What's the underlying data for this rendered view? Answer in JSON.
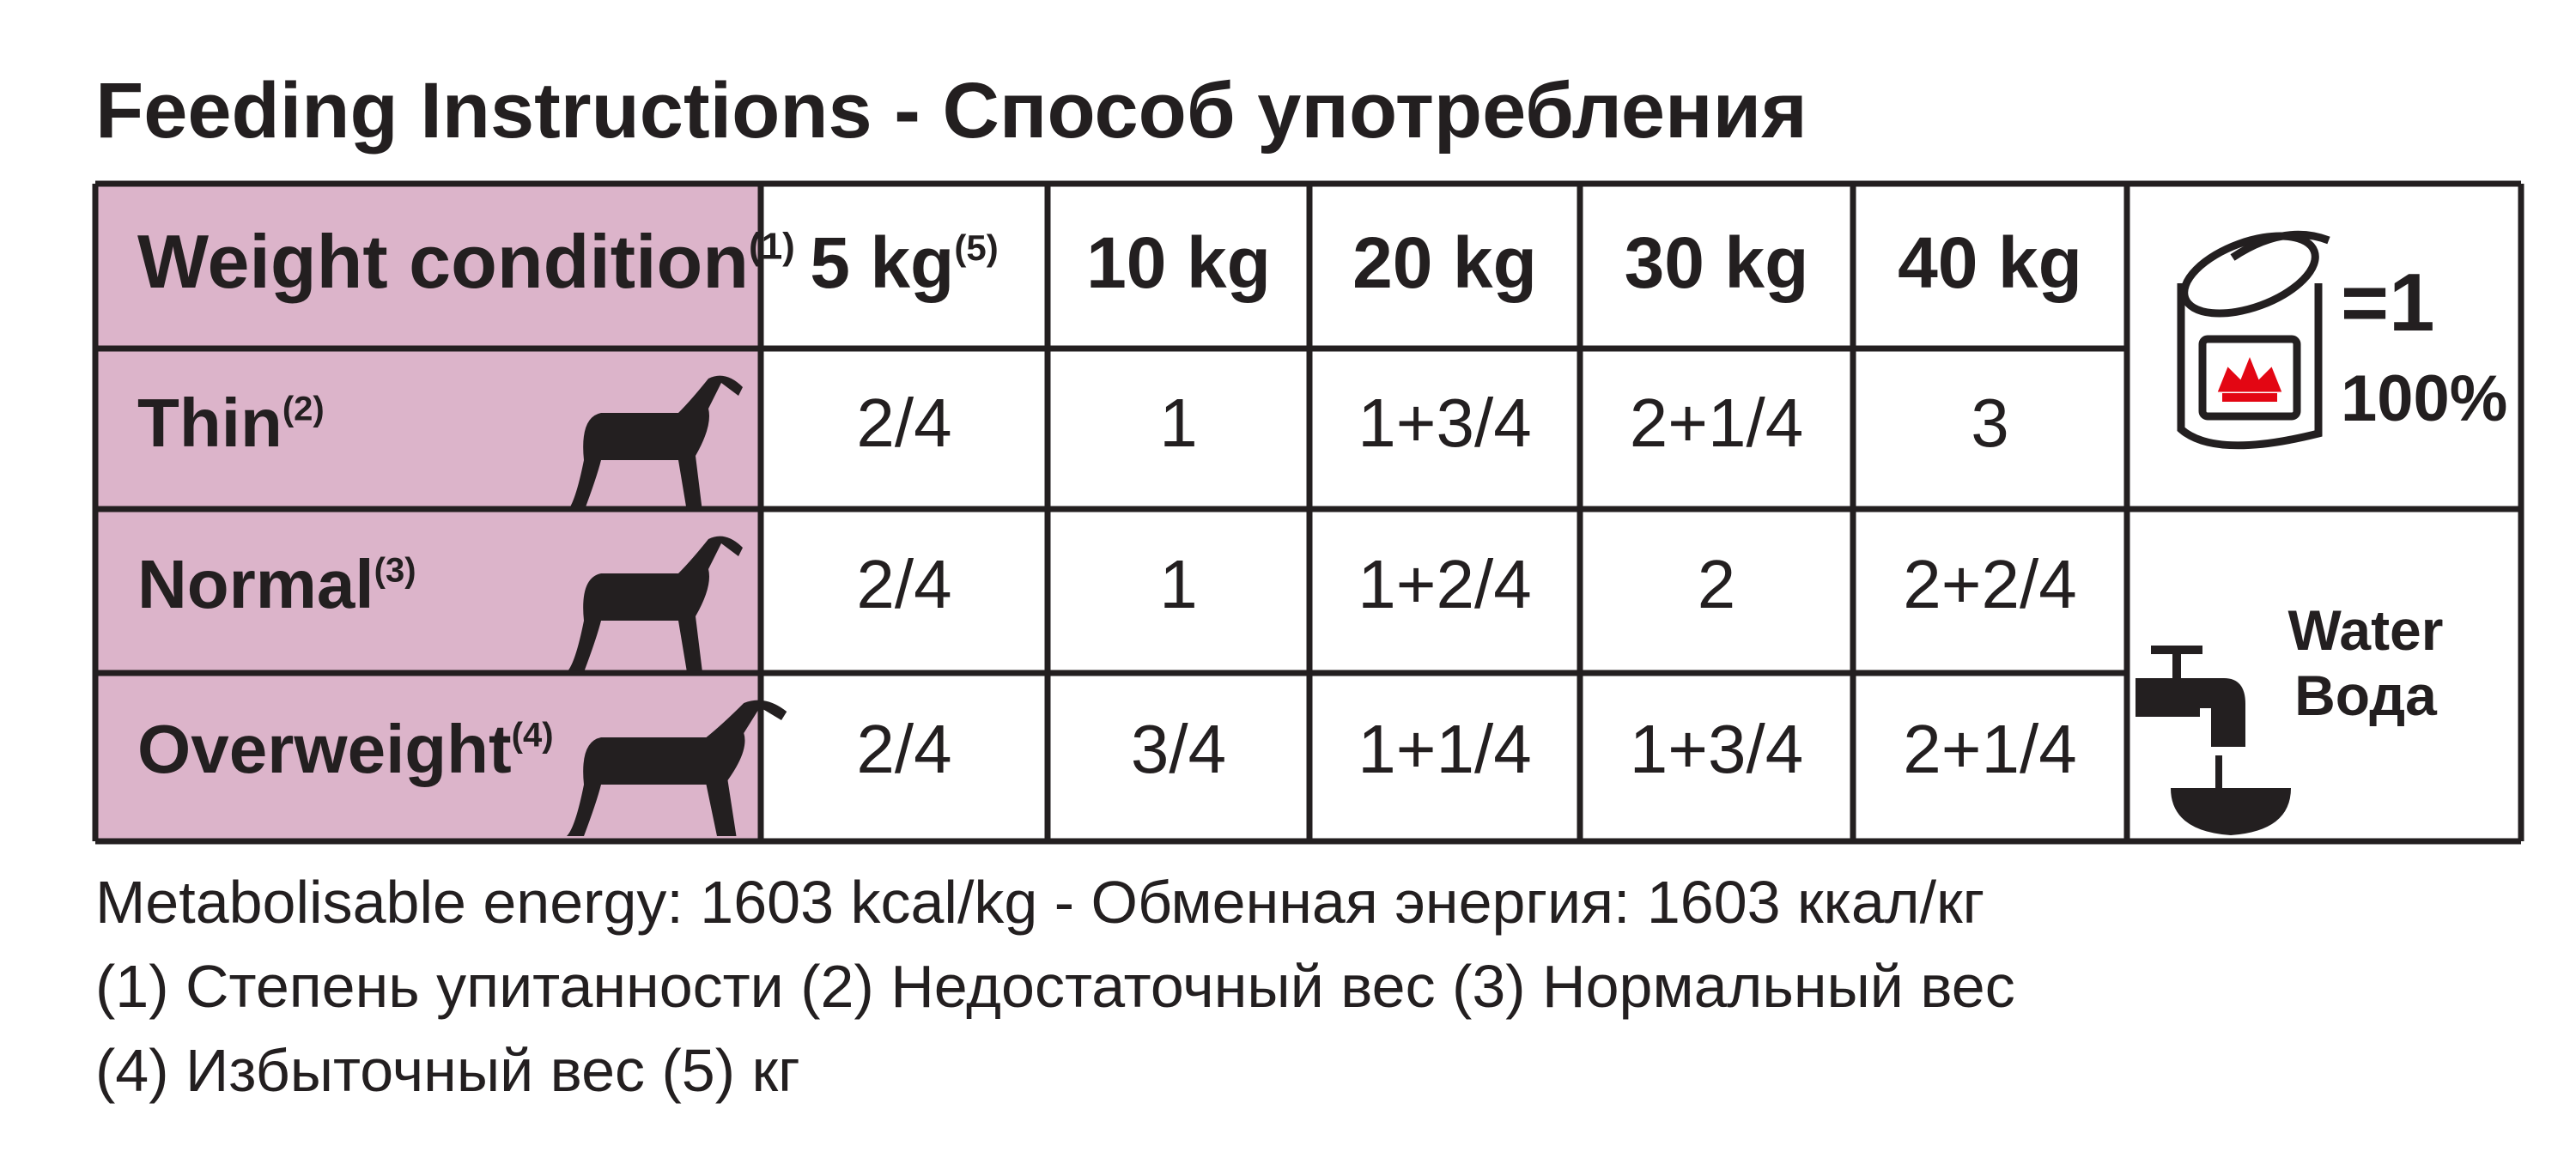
{
  "title": "Feeding Instructions - Способ употребления",
  "table": {
    "header": {
      "label": "Weight condition",
      "note": "(1)"
    },
    "columns": [
      {
        "label": "5 kg",
        "note": "(5)"
      },
      {
        "label": "10 kg"
      },
      {
        "label": "20 kg"
      },
      {
        "label": "30 kg"
      },
      {
        "label": "40 kg"
      }
    ],
    "rows": [
      {
        "label": "Thin",
        "note": "(2)",
        "values": [
          "2/4",
          "1",
          "1+3/4",
          "2+1/4",
          "3"
        ]
      },
      {
        "label": "Normal",
        "note": "(3)",
        "values": [
          "2/4",
          "1",
          "1+2/4",
          "2",
          "2+2/4"
        ]
      },
      {
        "label": "Overweight",
        "note": "(4)",
        "values": [
          "2/4",
          "3/4",
          "1+1/4",
          "1+3/4",
          "2+1/4"
        ]
      }
    ],
    "can": {
      "equals": "=1",
      "percent": "100%"
    },
    "water": [
      "Water",
      "Вода"
    ]
  },
  "footer": [
    "Metabolisable energy: 1603 kcal/kg - Обменная энергия: 1603 ккал/кг",
    "(1) Степень упитанности (2) Недостаточный вес (3) Нормальный вес",
    "(4) Избыточный вес (5) кг"
  ]
}
